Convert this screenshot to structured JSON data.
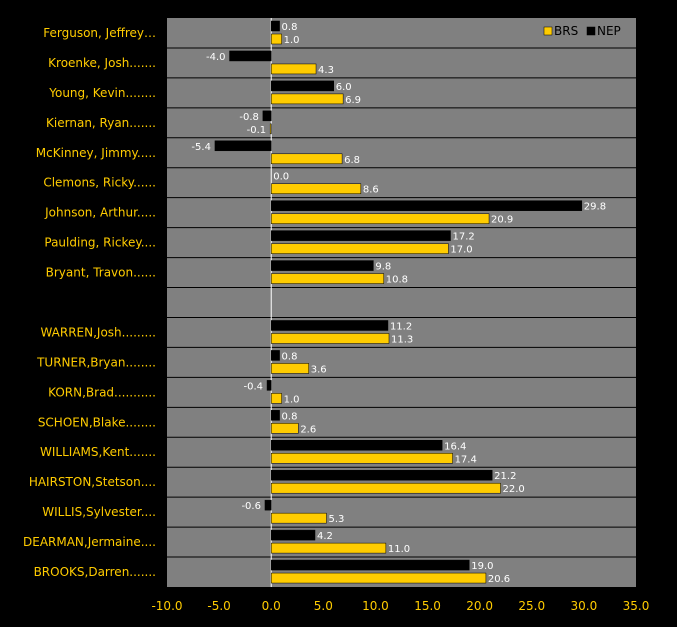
{
  "chart_data": {
    "type": "bar",
    "orientation": "horizontal",
    "legend_position": "top-right",
    "grid": "horizontal-separators",
    "xlim": [
      -10,
      35
    ],
    "x_ticks": [
      "-10.0",
      "-5.0",
      "0.0",
      "5.0",
      "10.0",
      "15.0",
      "20.0",
      "25.0",
      "30.0",
      "35.0"
    ],
    "categories": [
      "Ferguson, Jeffrey…",
      "Kroenke, Josh.......",
      "Young, Kevin........",
      "Kiernan, Ryan.......",
      "McKinney, Jimmy.....",
      "Clemons, Ricky......",
      "Johnson, Arthur.....",
      "Paulding, Rickey....",
      "Bryant, Travon......",
      "",
      "WARREN,Josh.........",
      "TURNER,Bryan........",
      "KORN,Brad...........",
      "SCHOEN,Blake........",
      "WILLIAMS,Kent.......",
      "HAIRSTON,Stetson....",
      "WILLIS,Sylvester....",
      "DEARMAN,Jermaine....",
      "BROOKS,Darren......."
    ],
    "series": [
      {
        "name": "NEP",
        "color": "#000000",
        "values": [
          0.8,
          -4.0,
          6.0,
          -0.8,
          -5.4,
          0.0,
          29.8,
          17.2,
          9.8,
          null,
          11.2,
          0.8,
          -0.4,
          0.8,
          16.4,
          21.2,
          -0.6,
          4.2,
          19.0
        ],
        "labels": [
          "0.8",
          "-4.0",
          "6.0",
          "-0.8",
          "-5.4",
          "0.0",
          "29.8",
          "17.2",
          "9.8",
          "",
          "11.2",
          "0.8",
          "-0.4",
          "0.8",
          "16.4",
          "21.2",
          "-0.6",
          "4.2",
          "19.0"
        ]
      },
      {
        "name": "BRS",
        "color": "#FFCC00",
        "values": [
          1.0,
          4.3,
          6.9,
          -0.1,
          6.8,
          8.6,
          20.9,
          17.0,
          10.8,
          null,
          11.3,
          3.6,
          1.0,
          2.6,
          17.4,
          22.0,
          5.3,
          11.0,
          20.6
        ],
        "labels": [
          "1.0",
          "4.3",
          "6.9",
          "-0.1",
          "6.8",
          "8.6",
          "20.9",
          "17.0",
          "10.8",
          "",
          "11.3",
          "3.6",
          "1.0",
          "2.6",
          "17.4",
          "22.0",
          "5.3",
          "11.0",
          "20.6"
        ]
      }
    ],
    "colors": {
      "background": "#000000",
      "plot_area": "#808080",
      "category_text": "#FFCC00",
      "value_text": "#FFFFFF",
      "tick_text": "#FFCC00",
      "zero_line": "#FFFFFF",
      "separator": "#000000"
    }
  }
}
